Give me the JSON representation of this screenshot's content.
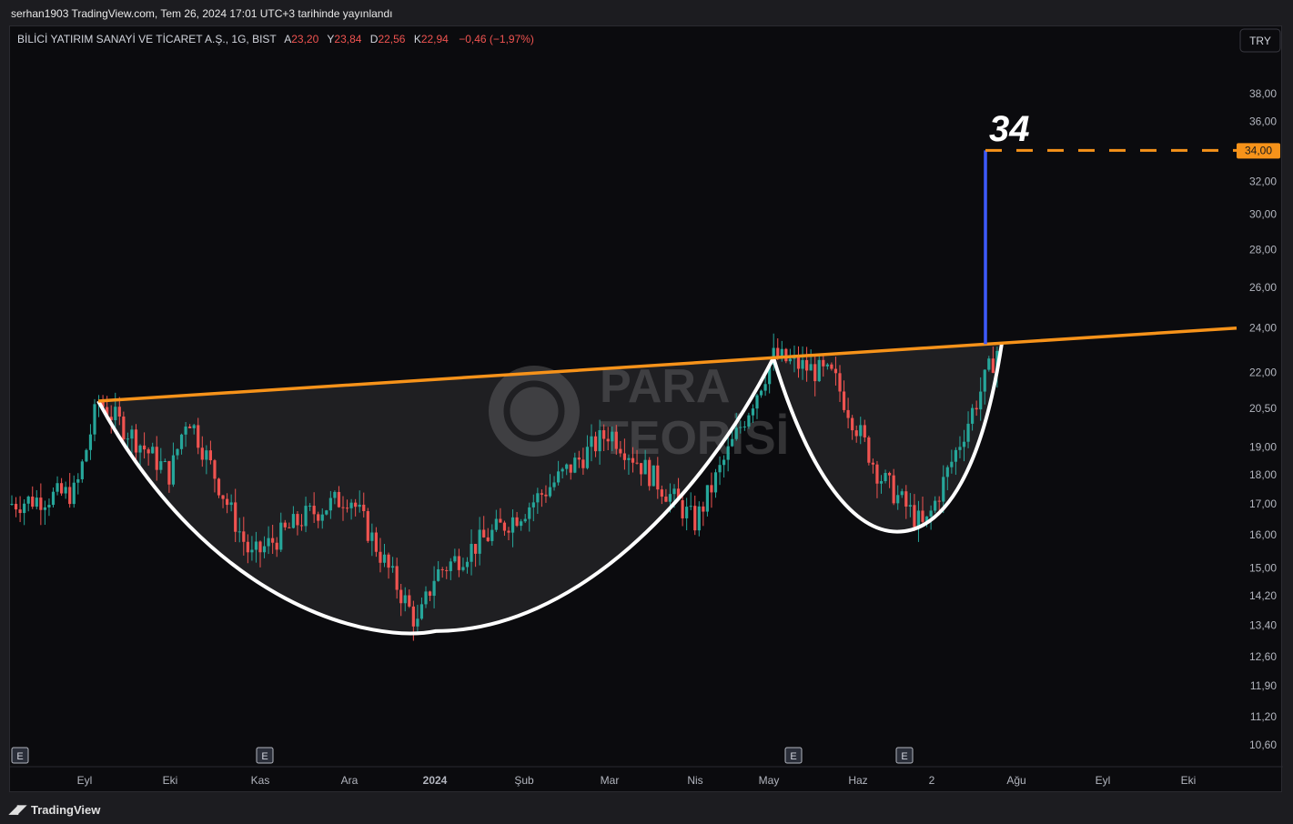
{
  "caption": "serhan1903 TradingView.com, Tem 26, 2024 17:01 UTC+3 tarihinde yayınlandı",
  "header": {
    "symbol": "BİLİCİ YATIRIM SANAYİ VE TİCARET A.Ş., 1G, BIST",
    "open_label": "A",
    "open": "23,20",
    "high_label": "Y",
    "high": "23,84",
    "low_label": "D",
    "low": "22,56",
    "close_label": "K",
    "close": "22,94",
    "change": "−0,46 (−1,97%)"
  },
  "currency_button": "TRY",
  "target_label": "34",
  "price_tag": "34,00",
  "watermark": {
    "line1": "PARA",
    "line2": "TEORİSİ"
  },
  "earnings_marker": "E",
  "footer": {
    "brand": "TradingView"
  },
  "colors": {
    "background": "#0b0b0e",
    "up": "#26a69a",
    "down": "#ef5350",
    "resistance": "#f7931a",
    "target_line": "#3d5afe",
    "cup_curve": "#ffffff"
  },
  "chart_data": {
    "type": "candlestick",
    "title": "BİLİCİ YATIRIM SANAYİ VE TİCARET A.Ş., 1G, BIST",
    "y_ticks": [
      "38,00",
      "36,00",
      "34,00",
      "32,00",
      "30,00",
      "28,00",
      "26,00",
      "24,00",
      "22,00",
      "20,50",
      "19,00",
      "18,00",
      "17,00",
      "16,00",
      "15,00",
      "14,20",
      "13,40",
      "12,60",
      "11,90",
      "11,20",
      "10,60"
    ],
    "x_ticks": [
      "Eyl",
      "Eki",
      "Kas",
      "Ara",
      "2024",
      "Şub",
      "Mar",
      "Nis",
      "May",
      "Haz",
      "2",
      "Ağu",
      "Eyl",
      "Eki"
    ],
    "scale": "log",
    "ylim": [
      10.3,
      40.0
    ],
    "ohlc_last": {
      "open": 23.2,
      "high": 23.84,
      "low": 22.56,
      "close": 22.94
    },
    "price_path": [
      {
        "x": "Ağu 2023 sonu",
        "y": 17.0
      },
      {
        "x": "Eyl",
        "y": 17.4
      },
      {
        "x": "Eyl ort.",
        "y": 20.8
      },
      {
        "x": "Eki",
        "y": 18.0
      },
      {
        "x": "Eki ort.",
        "y": 20.3
      },
      {
        "x": "Kas",
        "y": 15.3
      },
      {
        "x": "Kas ort.",
        "y": 16.6
      },
      {
        "x": "Ara",
        "y": 17.3
      },
      {
        "x": "Ara sonu",
        "y": 13.4
      },
      {
        "x": "2024",
        "y": 14.8
      },
      {
        "x": "Şub",
        "y": 16.8
      },
      {
        "x": "Mar",
        "y": 19.6
      },
      {
        "x": "Nis",
        "y": 16.4
      },
      {
        "x": "May",
        "y": 22.7
      },
      {
        "x": "Haz",
        "y": 21.8
      },
      {
        "x": "Haz ort.",
        "y": 18.0
      },
      {
        "x": "Tem başı",
        "y": 16.2
      },
      {
        "x": "Tem sonu",
        "y": 23.5
      }
    ],
    "pattern": "cup and handle",
    "resistance_line": [
      {
        "x": "Eyl ort.",
        "y": 20.8
      },
      {
        "x": "Ağu",
        "y": 24.0
      }
    ],
    "target": 34.0
  }
}
